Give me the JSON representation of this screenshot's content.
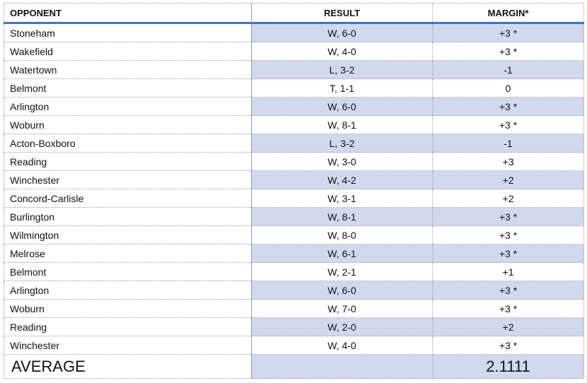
{
  "table": {
    "header": [
      "OPPONENT",
      "RESULT",
      "MARGIN*"
    ],
    "rows": [
      [
        "Stoneham",
        "W, 6-0",
        "+3 *"
      ],
      [
        "Wakefield",
        "W, 4-0",
        "+3 *"
      ],
      [
        "Watertown",
        "L, 3-2",
        "-1"
      ],
      [
        "Belmont",
        "T, 1-1",
        "0"
      ],
      [
        "Arlington",
        "W, 6-0",
        "+3 *"
      ],
      [
        "Woburn",
        "W, 8-1",
        "+3 *"
      ],
      [
        "Acton-Boxboro",
        "L, 3-2",
        "-1"
      ],
      [
        "Reading",
        "W, 3-0",
        "+3"
      ],
      [
        "Winchester",
        "W, 4-2",
        "+2"
      ],
      [
        "Concord-Carlisle",
        "W, 3-1",
        "+2"
      ],
      [
        "Burlington",
        "W, 8-1",
        "+3 *"
      ],
      [
        "Wilmington",
        "W, 8-0",
        "+3 *"
      ],
      [
        "Melrose",
        "W, 6-1",
        "+3 *"
      ],
      [
        "Belmont",
        "W, 2-1",
        "+1"
      ],
      [
        "Arlington",
        "W, 6-0",
        "+3 *"
      ],
      [
        "Woburn",
        "W, 7-0",
        "+3 *"
      ],
      [
        "Reading",
        "W, 2-0",
        "+2"
      ],
      [
        "Winchester",
        "W, 4-0",
        "+3 *"
      ]
    ],
    "footer": [
      "AVERAGE",
      "",
      "2.1111"
    ]
  }
}
